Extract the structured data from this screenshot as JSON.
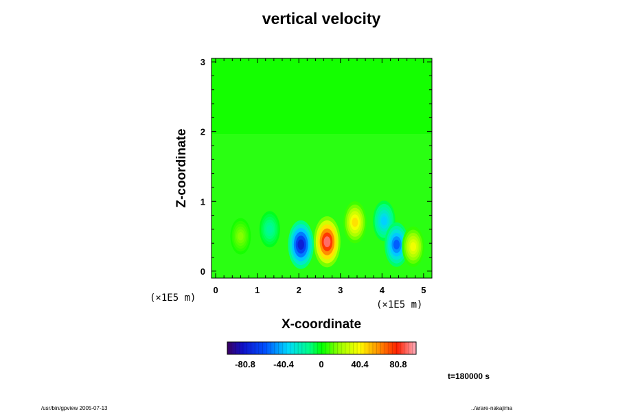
{
  "chart_data": {
    "type": "heatmap",
    "title": "vertical velocity",
    "xlabel": "X-coordinate",
    "ylabel": "Z-coordinate",
    "x_unit": "(×1E5 m)",
    "z_unit": "(×1E5 m)",
    "xlim": [
      -0.1,
      5.2
    ],
    "ylim": [
      -0.1,
      3.05
    ],
    "x_ticks": [
      "0",
      "1",
      "2",
      "3",
      "4",
      "5"
    ],
    "y_ticks": [
      "0",
      "1",
      "2",
      "3"
    ],
    "colorbar": {
      "range": [
        -121.2,
        121.2
      ],
      "ticks": [
        "-80.8",
        "-40.4",
        "0",
        "40.4",
        "80.8"
      ]
    },
    "features": [
      {
        "x": 2.05,
        "z": 0.38,
        "value": -95
      },
      {
        "x": 2.68,
        "z": 0.42,
        "value": 110
      },
      {
        "x": 3.35,
        "z": 0.7,
        "value": 55
      },
      {
        "x": 4.05,
        "z": 0.72,
        "value": -45
      },
      {
        "x": 4.35,
        "z": 0.38,
        "value": -70
      },
      {
        "x": 4.75,
        "z": 0.35,
        "value": 45
      },
      {
        "x": 1.3,
        "z": 0.6,
        "value": -20
      },
      {
        "x": 0.6,
        "z": 0.5,
        "value": 20
      }
    ]
  },
  "footer": {
    "time": "t=180000 s",
    "left_note": "/usr/bin/gpview 2005-07-13",
    "right_note": "../arare-nakajima"
  }
}
